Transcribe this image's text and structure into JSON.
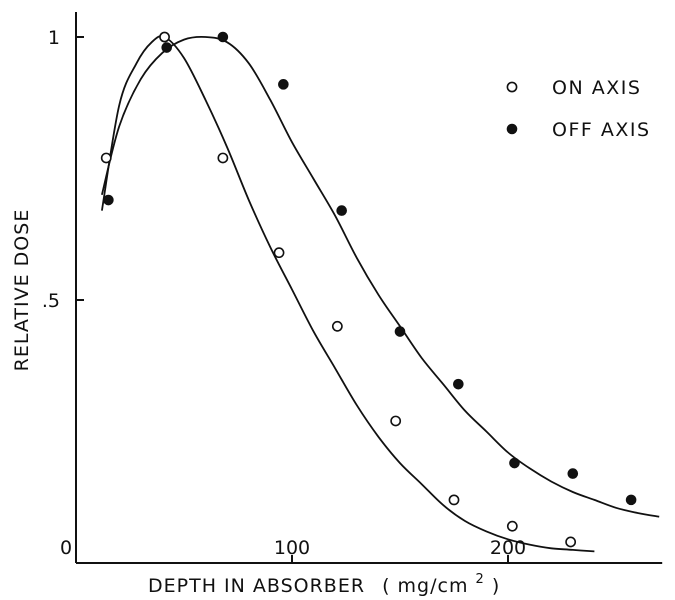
{
  "chart_data": {
    "type": "scatter",
    "title": "",
    "xlabel": "DEPTH IN ABSORBER",
    "xlabel_unit": "( mg/cm",
    "xlabel_unit_sup": "2",
    "xlabel_unit_end": " )",
    "ylabel": "RELATIVE DOSE",
    "xlim": [
      0,
      270
    ],
    "ylim": [
      0,
      1.05
    ],
    "x_ticks": [
      {
        "value": 0,
        "label": "0"
      },
      {
        "value": 100,
        "label": "100"
      },
      {
        "value": 200,
        "label": "200"
      }
    ],
    "y_ticks": [
      {
        "value": 0.5,
        "label": ".5"
      },
      {
        "value": 1,
        "label": "1"
      }
    ],
    "grid": false,
    "legend_position": "top-right",
    "series": [
      {
        "name": "ON AXIS",
        "marker": "open-circle",
        "x": [
          14,
          41,
          68,
          94,
          121,
          148,
          175,
          202,
          229
        ],
        "y": [
          0.77,
          1.0,
          0.77,
          0.59,
          0.45,
          0.27,
          0.12,
          0.07,
          0.04
        ],
        "curve_x": [
          12,
          20,
          28,
          35,
          41,
          50,
          60,
          70,
          80,
          90,
          100,
          110,
          120,
          130,
          140,
          150,
          160,
          170,
          180,
          190,
          200,
          210,
          220,
          230,
          240
        ],
        "curve_y": [
          0.67,
          0.87,
          0.95,
          0.99,
          1.0,
          0.96,
          0.88,
          0.79,
          0.69,
          0.6,
          0.52,
          0.44,
          0.37,
          0.3,
          0.24,
          0.19,
          0.15,
          0.11,
          0.08,
          0.06,
          0.045,
          0.035,
          0.028,
          0.025,
          0.022
        ]
      },
      {
        "name": "OFF AXIS",
        "marker": "filled-circle",
        "x": [
          15,
          42,
          68,
          96,
          123,
          150,
          177,
          203,
          230,
          257
        ],
        "y": [
          0.69,
          0.98,
          1.0,
          0.91,
          0.67,
          0.44,
          0.34,
          0.19,
          0.17,
          0.12
        ],
        "curve_x": [
          12,
          20,
          30,
          40,
          50,
          60,
          70,
          80,
          90,
          100,
          110,
          120,
          130,
          140,
          150,
          160,
          170,
          180,
          190,
          200,
          210,
          220,
          230,
          240,
          250,
          260,
          270
        ],
        "curve_y": [
          0.7,
          0.83,
          0.92,
          0.97,
          0.995,
          1.0,
          0.99,
          0.95,
          0.88,
          0.8,
          0.73,
          0.66,
          0.58,
          0.51,
          0.45,
          0.39,
          0.34,
          0.29,
          0.25,
          0.21,
          0.18,
          0.155,
          0.135,
          0.12,
          0.105,
          0.095,
          0.088
        ]
      }
    ]
  }
}
